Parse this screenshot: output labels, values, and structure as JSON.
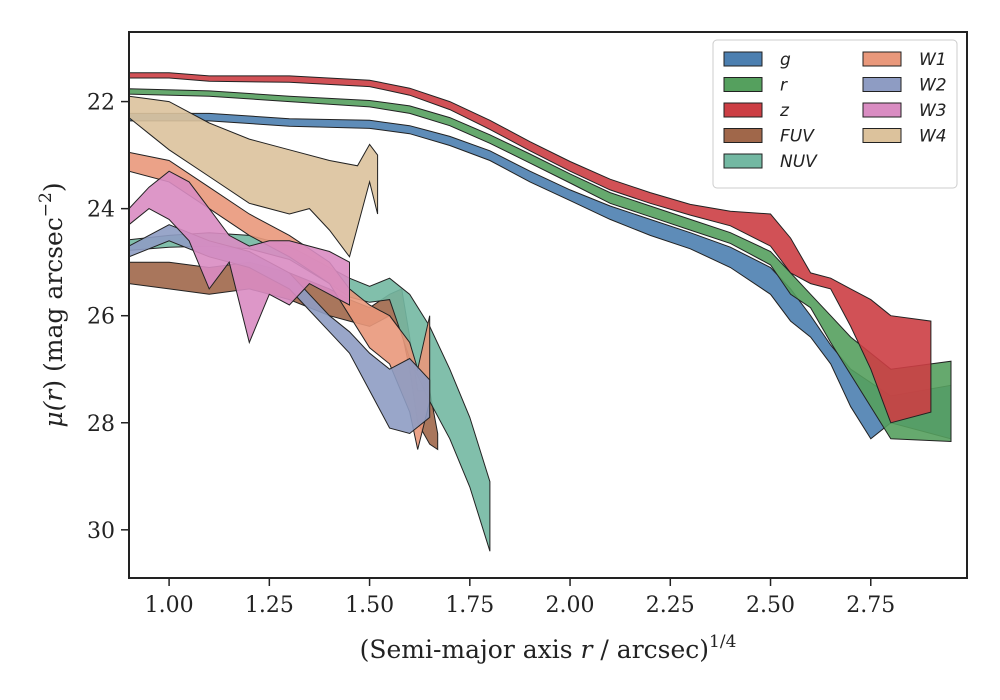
{
  "chart_data": {
    "type": "area",
    "title": "",
    "xlabel": {
      "prefix": "(Semi-major axis ",
      "var": "r",
      "mid": " / arcsec)",
      "sup": "1/4"
    },
    "ylabel": {
      "prefix": "μ(",
      "var": "r",
      "mid": ") (mag arcsec",
      "sup": "−2",
      "suffix": ")"
    },
    "xlim": [
      0.9,
      2.99
    ],
    "ylim": [
      30.9,
      20.7
    ],
    "y_inverted": true,
    "xticks": [
      1.0,
      1.25,
      1.5,
      1.75,
      2.0,
      2.25,
      2.5,
      2.75
    ],
    "xtick_labels": [
      "1.00",
      "1.25",
      "1.50",
      "1.75",
      "2.00",
      "2.25",
      "2.50",
      "2.75"
    ],
    "yticks": [
      22,
      24,
      26,
      28,
      30
    ],
    "ytick_labels": [
      "22",
      "24",
      "26",
      "28",
      "30"
    ],
    "grid": false,
    "legend": {
      "placement": "top-right",
      "columns": 2
    },
    "series": [
      {
        "name": "g",
        "color": "#4c7fb0",
        "upper": [
          [
            0.9,
            22.22
          ],
          [
            1.1,
            22.22
          ],
          [
            1.3,
            22.32
          ],
          [
            1.5,
            22.35
          ],
          [
            1.6,
            22.45
          ],
          [
            1.7,
            22.65
          ],
          [
            1.8,
            22.92
          ],
          [
            1.9,
            23.3
          ],
          [
            2.0,
            23.65
          ],
          [
            2.1,
            23.95
          ],
          [
            2.2,
            24.2
          ],
          [
            2.3,
            24.45
          ],
          [
            2.4,
            24.72
          ],
          [
            2.5,
            25.1
          ],
          [
            2.55,
            25.5
          ],
          [
            2.6,
            26.0
          ],
          [
            2.65,
            26.55
          ],
          [
            2.7,
            27.0
          ],
          [
            2.8,
            27.5
          ],
          [
            2.95,
            27.3
          ]
        ],
        "lower": [
          [
            0.9,
            22.36
          ],
          [
            1.1,
            22.36
          ],
          [
            1.3,
            22.46
          ],
          [
            1.5,
            22.5
          ],
          [
            1.6,
            22.6
          ],
          [
            1.7,
            22.82
          ],
          [
            1.8,
            23.1
          ],
          [
            1.9,
            23.5
          ],
          [
            2.0,
            23.85
          ],
          [
            2.1,
            24.2
          ],
          [
            2.2,
            24.5
          ],
          [
            2.3,
            24.75
          ],
          [
            2.4,
            25.1
          ],
          [
            2.5,
            25.6
          ],
          [
            2.55,
            26.1
          ],
          [
            2.6,
            26.4
          ],
          [
            2.65,
            26.9
          ],
          [
            2.7,
            27.7
          ],
          [
            2.75,
            28.3
          ],
          [
            2.8,
            28.0
          ],
          [
            2.95,
            28.3
          ]
        ]
      },
      {
        "name": "r",
        "color": "#55a05e",
        "upper": [
          [
            0.9,
            21.76
          ],
          [
            1.1,
            21.8
          ],
          [
            1.3,
            21.9
          ],
          [
            1.5,
            21.98
          ],
          [
            1.6,
            22.08
          ],
          [
            1.7,
            22.3
          ],
          [
            1.8,
            22.62
          ],
          [
            1.9,
            22.98
          ],
          [
            2.0,
            23.35
          ],
          [
            2.1,
            23.7
          ],
          [
            2.2,
            23.95
          ],
          [
            2.3,
            24.2
          ],
          [
            2.4,
            24.45
          ],
          [
            2.5,
            24.8
          ],
          [
            2.55,
            25.2
          ],
          [
            2.6,
            25.6
          ],
          [
            2.65,
            26.0
          ],
          [
            2.7,
            26.4
          ],
          [
            2.8,
            27.0
          ],
          [
            2.95,
            26.85
          ]
        ],
        "lower": [
          [
            0.9,
            21.86
          ],
          [
            1.1,
            21.9
          ],
          [
            1.3,
            22.0
          ],
          [
            1.5,
            22.1
          ],
          [
            1.6,
            22.22
          ],
          [
            1.7,
            22.45
          ],
          [
            1.8,
            22.78
          ],
          [
            1.9,
            23.15
          ],
          [
            2.0,
            23.52
          ],
          [
            2.1,
            23.9
          ],
          [
            2.2,
            24.15
          ],
          [
            2.3,
            24.4
          ],
          [
            2.4,
            24.65
          ],
          [
            2.5,
            25.05
          ],
          [
            2.55,
            25.6
          ],
          [
            2.6,
            25.85
          ],
          [
            2.65,
            26.5
          ],
          [
            2.7,
            27.1
          ],
          [
            2.8,
            28.3
          ],
          [
            2.95,
            28.35
          ]
        ]
      },
      {
        "name": "z",
        "color": "#cc3e44",
        "upper": [
          [
            0.9,
            21.46
          ],
          [
            1.0,
            21.46
          ],
          [
            1.1,
            21.52
          ],
          [
            1.3,
            21.52
          ],
          [
            1.5,
            21.6
          ],
          [
            1.6,
            21.75
          ],
          [
            1.7,
            22.0
          ],
          [
            1.8,
            22.35
          ],
          [
            1.9,
            22.75
          ],
          [
            2.0,
            23.12
          ],
          [
            2.1,
            23.45
          ],
          [
            2.2,
            23.7
          ],
          [
            2.3,
            23.92
          ],
          [
            2.4,
            24.05
          ],
          [
            2.5,
            24.1
          ],
          [
            2.55,
            24.55
          ],
          [
            2.6,
            25.2
          ],
          [
            2.65,
            25.3
          ],
          [
            2.7,
            25.5
          ],
          [
            2.75,
            25.7
          ],
          [
            2.8,
            26.0
          ],
          [
            2.9,
            26.1
          ]
        ],
        "lower": [
          [
            0.9,
            21.56
          ],
          [
            1.0,
            21.56
          ],
          [
            1.1,
            21.62
          ],
          [
            1.3,
            21.64
          ],
          [
            1.5,
            21.72
          ],
          [
            1.6,
            21.88
          ],
          [
            1.7,
            22.15
          ],
          [
            1.8,
            22.52
          ],
          [
            1.9,
            22.92
          ],
          [
            2.0,
            23.3
          ],
          [
            2.1,
            23.65
          ],
          [
            2.2,
            23.9
          ],
          [
            2.3,
            24.12
          ],
          [
            2.4,
            24.32
          ],
          [
            2.5,
            24.7
          ],
          [
            2.55,
            25.2
          ],
          [
            2.6,
            25.4
          ],
          [
            2.65,
            25.5
          ],
          [
            2.7,
            26.2
          ],
          [
            2.75,
            27.0
          ],
          [
            2.8,
            28.0
          ],
          [
            2.9,
            27.8
          ]
        ]
      },
      {
        "name": "FUV",
        "color": "#a0674a",
        "upper": [
          [
            0.9,
            25.0
          ],
          [
            1.0,
            25.0
          ],
          [
            1.1,
            25.1
          ],
          [
            1.2,
            25.0
          ],
          [
            1.3,
            25.2
          ],
          [
            1.4,
            25.5
          ],
          [
            1.45,
            25.7
          ],
          [
            1.5,
            25.85
          ],
          [
            1.55,
            25.6
          ],
          [
            1.58,
            25.5
          ],
          [
            1.6,
            26.4
          ],
          [
            1.62,
            27.4
          ],
          [
            1.65,
            27.4
          ],
          [
            1.67,
            28.2
          ]
        ],
        "lower": [
          [
            0.9,
            25.4
          ],
          [
            1.0,
            25.5
          ],
          [
            1.1,
            25.6
          ],
          [
            1.2,
            25.5
          ],
          [
            1.3,
            25.7
          ],
          [
            1.4,
            26.0
          ],
          [
            1.45,
            26.1
          ],
          [
            1.5,
            26.2
          ],
          [
            1.55,
            26.0
          ],
          [
            1.58,
            26.3
          ],
          [
            1.6,
            27.0
          ],
          [
            1.62,
            28.0
          ],
          [
            1.65,
            28.4
          ],
          [
            1.67,
            28.5
          ]
        ]
      },
      {
        "name": "NUV",
        "color": "#73b8a2",
        "upper": [
          [
            0.9,
            24.58
          ],
          [
            1.0,
            24.5
          ],
          [
            1.1,
            24.45
          ],
          [
            1.2,
            24.5
          ],
          [
            1.3,
            24.7
          ],
          [
            1.4,
            25.1
          ],
          [
            1.45,
            25.3
          ],
          [
            1.5,
            25.45
          ],
          [
            1.55,
            25.3
          ],
          [
            1.6,
            25.6
          ],
          [
            1.65,
            26.2
          ],
          [
            1.7,
            27.0
          ],
          [
            1.75,
            27.9
          ],
          [
            1.8,
            29.1
          ]
        ],
        "lower": [
          [
            0.9,
            24.78
          ],
          [
            1.0,
            24.72
          ],
          [
            1.1,
            24.7
          ],
          [
            1.2,
            24.75
          ],
          [
            1.3,
            24.95
          ],
          [
            1.4,
            25.4
          ],
          [
            1.45,
            25.65
          ],
          [
            1.5,
            25.75
          ],
          [
            1.55,
            25.7
          ],
          [
            1.6,
            26.8
          ],
          [
            1.65,
            27.6
          ],
          [
            1.7,
            28.3
          ],
          [
            1.75,
            29.2
          ],
          [
            1.8,
            30.4
          ]
        ]
      },
      {
        "name": "W1",
        "color": "#e9987b",
        "upper": [
          [
            0.9,
            22.95
          ],
          [
            1.0,
            23.1
          ],
          [
            1.1,
            23.6
          ],
          [
            1.2,
            24.1
          ],
          [
            1.3,
            24.5
          ],
          [
            1.4,
            25.0
          ],
          [
            1.45,
            25.5
          ],
          [
            1.5,
            25.8
          ],
          [
            1.55,
            26.0
          ],
          [
            1.6,
            26.5
          ],
          [
            1.62,
            27.0
          ],
          [
            1.65,
            26.0
          ]
        ],
        "lower": [
          [
            0.9,
            23.3
          ],
          [
            1.0,
            23.5
          ],
          [
            1.1,
            24.0
          ],
          [
            1.2,
            24.5
          ],
          [
            1.3,
            24.9
          ],
          [
            1.4,
            25.4
          ],
          [
            1.45,
            26.0
          ],
          [
            1.5,
            26.6
          ],
          [
            1.55,
            26.9
          ],
          [
            1.6,
            27.8
          ],
          [
            1.62,
            28.5
          ],
          [
            1.65,
            27.6
          ]
        ]
      },
      {
        "name": "W2",
        "color": "#8e9cc3",
        "upper": [
          [
            0.9,
            24.7
          ],
          [
            1.0,
            24.3
          ],
          [
            1.1,
            24.6
          ],
          [
            1.2,
            24.8
          ],
          [
            1.3,
            25.2
          ],
          [
            1.35,
            25.6
          ],
          [
            1.4,
            26.0
          ],
          [
            1.45,
            26.3
          ],
          [
            1.5,
            26.7
          ],
          [
            1.55,
            27.0
          ],
          [
            1.6,
            26.8
          ],
          [
            1.65,
            27.2
          ]
        ],
        "lower": [
          [
            0.9,
            24.9
          ],
          [
            1.0,
            24.6
          ],
          [
            1.1,
            24.9
          ],
          [
            1.2,
            25.1
          ],
          [
            1.3,
            25.5
          ],
          [
            1.35,
            25.9
          ],
          [
            1.4,
            26.3
          ],
          [
            1.45,
            26.7
          ],
          [
            1.5,
            27.4
          ],
          [
            1.55,
            28.1
          ],
          [
            1.6,
            28.2
          ],
          [
            1.65,
            27.9
          ]
        ]
      },
      {
        "name": "W3",
        "color": "#d98cc2",
        "upper": [
          [
            0.9,
            24.0
          ],
          [
            0.95,
            23.6
          ],
          [
            1.0,
            23.3
          ],
          [
            1.05,
            23.5
          ],
          [
            1.1,
            24.0
          ],
          [
            1.15,
            24.5
          ],
          [
            1.2,
            24.7
          ],
          [
            1.25,
            24.6
          ],
          [
            1.3,
            24.6
          ],
          [
            1.35,
            24.7
          ],
          [
            1.4,
            24.8
          ],
          [
            1.45,
            25.0
          ]
        ],
        "lower": [
          [
            0.9,
            24.3
          ],
          [
            0.95,
            24.0
          ],
          [
            1.0,
            24.2
          ],
          [
            1.05,
            24.6
          ],
          [
            1.1,
            25.5
          ],
          [
            1.15,
            25.0
          ],
          [
            1.2,
            26.5
          ],
          [
            1.25,
            25.6
          ],
          [
            1.3,
            25.8
          ],
          [
            1.35,
            25.4
          ],
          [
            1.4,
            25.6
          ],
          [
            1.45,
            25.8
          ]
        ]
      },
      {
        "name": "W4",
        "color": "#dcc29c",
        "upper": [
          [
            0.9,
            21.9
          ],
          [
            0.95,
            21.95
          ],
          [
            1.0,
            22.0
          ],
          [
            1.1,
            22.4
          ],
          [
            1.2,
            22.7
          ],
          [
            1.3,
            22.9
          ],
          [
            1.4,
            23.1
          ],
          [
            1.47,
            23.2
          ],
          [
            1.5,
            22.8
          ],
          [
            1.52,
            23.0
          ]
        ],
        "lower": [
          [
            0.9,
            22.3
          ],
          [
            0.95,
            22.6
          ],
          [
            1.0,
            22.9
          ],
          [
            1.1,
            23.4
          ],
          [
            1.2,
            23.9
          ],
          [
            1.3,
            24.1
          ],
          [
            1.35,
            24.0
          ],
          [
            1.4,
            24.4
          ],
          [
            1.45,
            24.9
          ],
          [
            1.5,
            23.5
          ],
          [
            1.52,
            24.1
          ]
        ]
      }
    ]
  }
}
